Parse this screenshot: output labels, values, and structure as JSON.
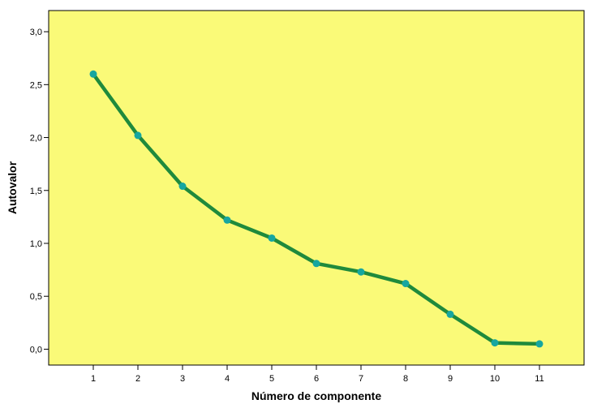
{
  "chart_data": {
    "type": "line",
    "title": "",
    "xlabel": "Número de componente",
    "ylabel": "Autovalor",
    "x": [
      1,
      2,
      3,
      4,
      5,
      6,
      7,
      8,
      9,
      10,
      11
    ],
    "x_tick_labels": [
      "1",
      "2",
      "3",
      "4",
      "5",
      "6",
      "7",
      "8",
      "9",
      "10",
      "11"
    ],
    "series": [
      {
        "values": [
          2.6,
          2.02,
          1.54,
          1.22,
          1.05,
          0.81,
          0.73,
          0.62,
          0.33,
          0.06,
          0.05
        ]
      }
    ],
    "xlim": [
      0.0,
      12.0
    ],
    "ylim": [
      -0.15,
      3.2
    ],
    "y_ticks": [
      0.0,
      0.5,
      1.0,
      1.5,
      2.0,
      2.5,
      3.0
    ],
    "y_tick_labels": [
      "0,0",
      "0,5",
      "1,0",
      "1,5",
      "2,0",
      "2,5",
      "3,0"
    ],
    "grid": false,
    "legend": "none",
    "colors": {
      "plot_background": "#fafa78",
      "line": "#1f8a3c",
      "marker": "#16a6a0",
      "axis": "#000000"
    }
  }
}
